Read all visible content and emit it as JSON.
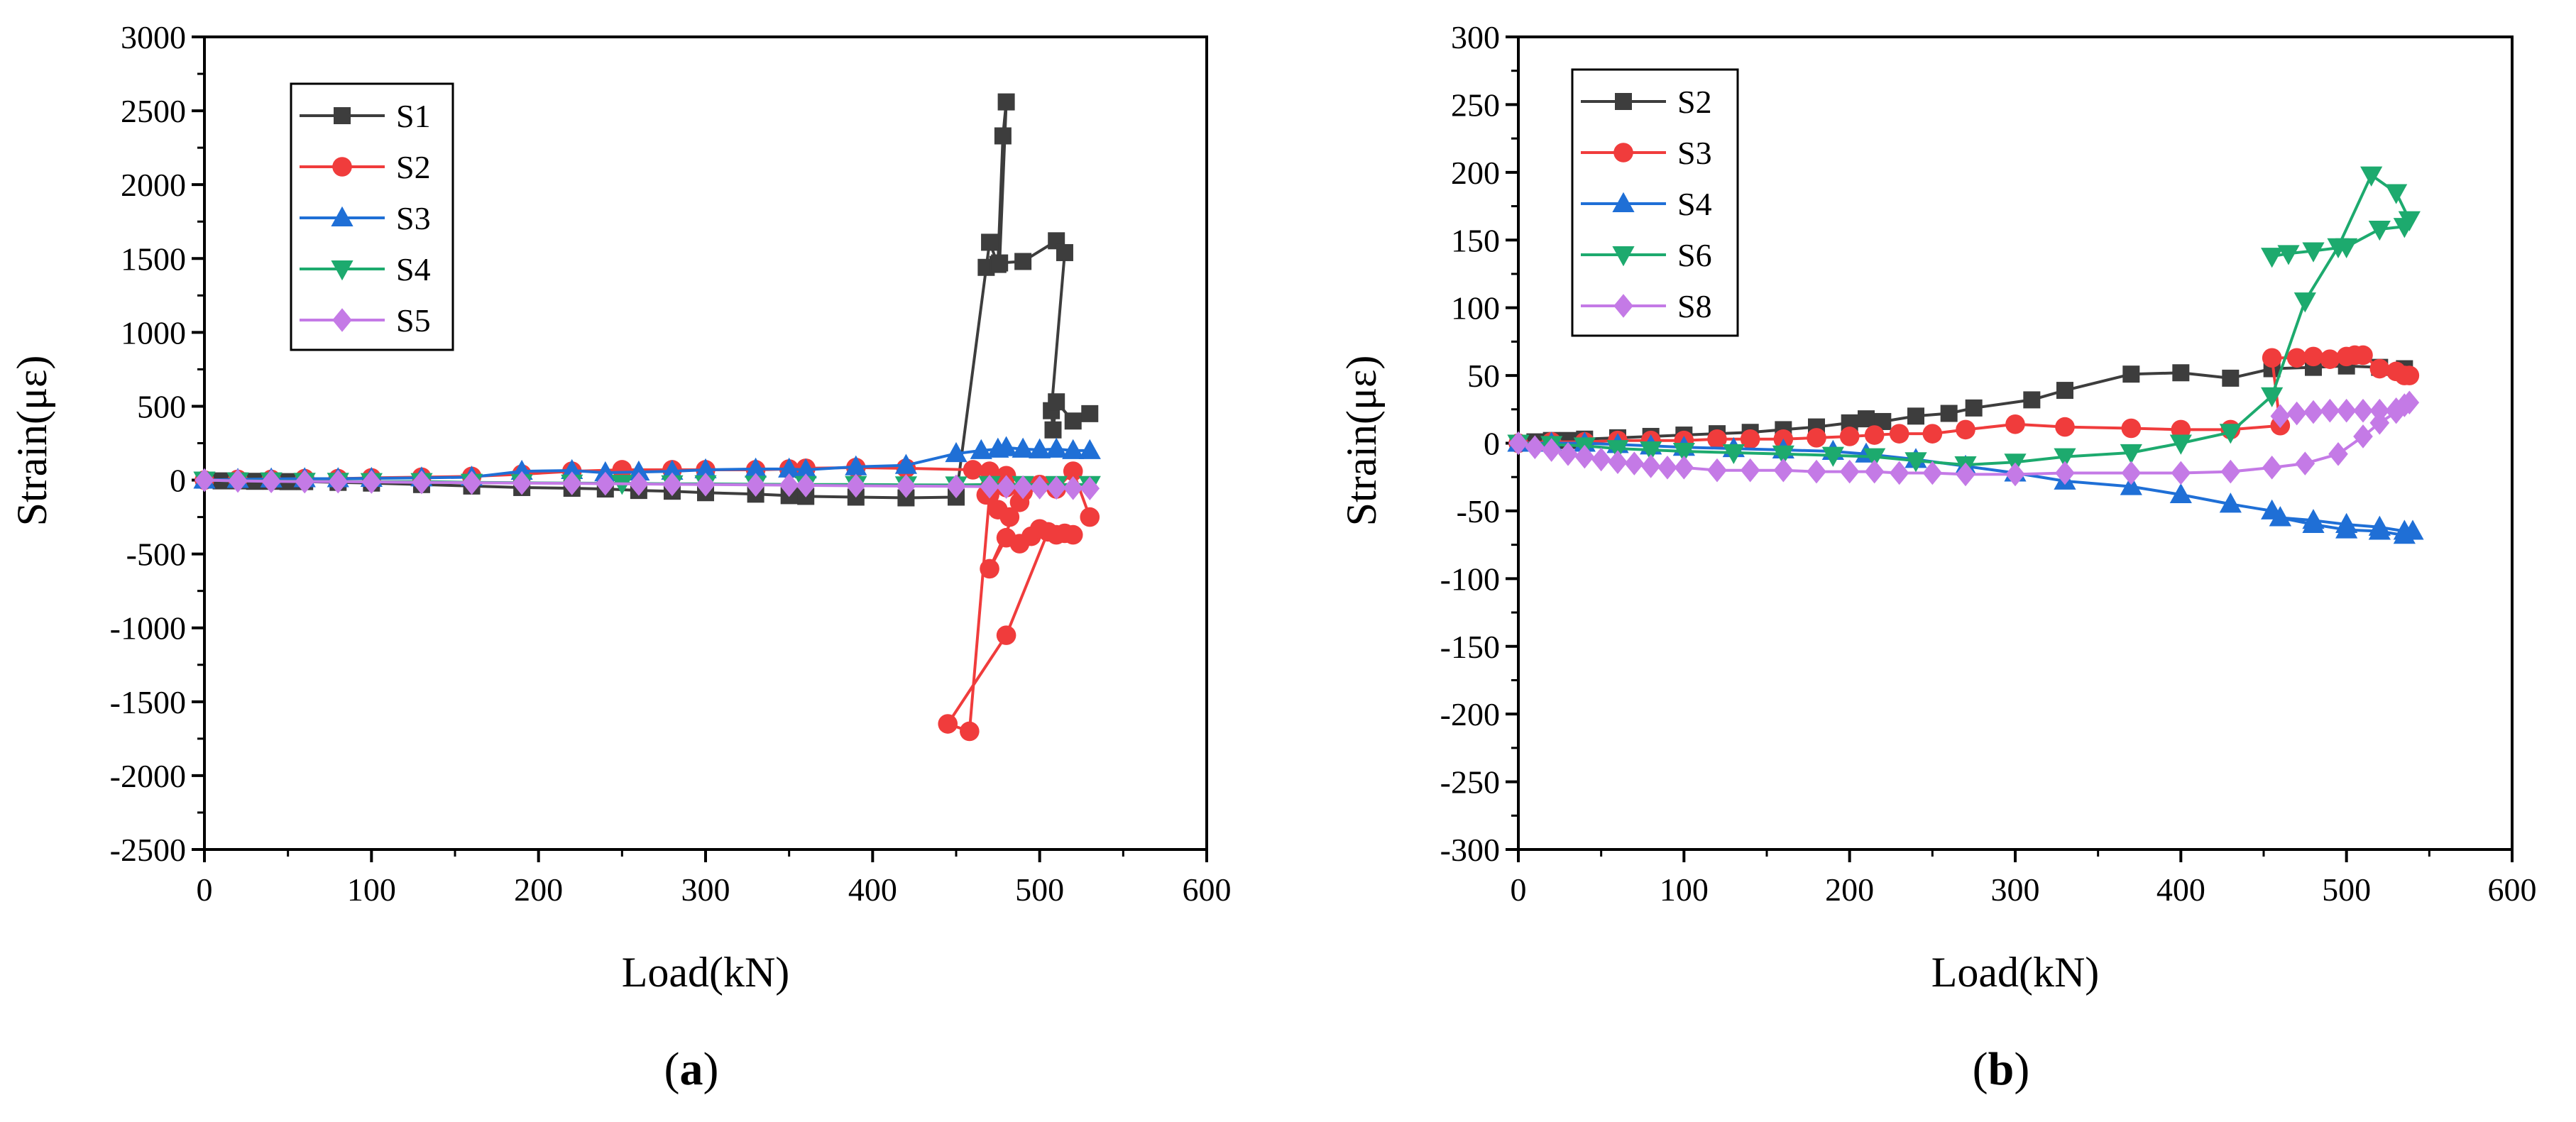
{
  "chart_data": [
    {
      "type": "line",
      "panel_label": "(a)",
      "panel_letter": "a",
      "title": "",
      "xlabel": "Load(kN)",
      "ylabel": "Strain(με)",
      "xlim": [
        0,
        600
      ],
      "ylim": [
        -2500,
        3000
      ],
      "xticks": [
        0,
        100,
        200,
        300,
        400,
        500,
        600
      ],
      "yticks": [
        -2500,
        -2000,
        -1500,
        -1000,
        -500,
        0,
        500,
        1000,
        1500,
        2000,
        2500,
        3000
      ],
      "grid": false,
      "legend_position": "top-left",
      "series": [
        {
          "name": "S1",
          "color": "#3d3d3d",
          "marker": "square",
          "x": [
            0,
            10,
            20,
            30,
            40,
            50,
            60,
            80,
            100,
            130,
            160,
            190,
            220,
            240,
            260,
            280,
            300,
            330,
            350,
            360,
            390,
            420,
            450,
            468,
            470,
            475,
            478,
            480,
            476,
            490,
            510,
            515,
            507,
            508,
            510,
            520,
            530
          ],
          "y": [
            0,
            -5,
            -5,
            -8,
            -8,
            -10,
            -10,
            -15,
            -20,
            -30,
            -40,
            -50,
            -55,
            -60,
            -70,
            -75,
            -85,
            -95,
            -105,
            -110,
            -115,
            -120,
            -115,
            1440,
            1610,
            1460,
            2330,
            2560,
            1470,
            1480,
            1620,
            1540,
            470,
            340,
            530,
            400,
            450
          ]
        },
        {
          "name": "S2",
          "color": "#f03c3c",
          "marker": "circle",
          "x": [
            0,
            20,
            40,
            60,
            80,
            100,
            130,
            160,
            190,
            220,
            250,
            280,
            300,
            330,
            350,
            360,
            390,
            420,
            460,
            470,
            480,
            475,
            470,
            468,
            475,
            482,
            488,
            470,
            480,
            488,
            495,
            500,
            510,
            520,
            515,
            505,
            480,
            445,
            458,
            470,
            480,
            490,
            500,
            510,
            520,
            530
          ],
          "y": [
            0,
            5,
            5,
            10,
            10,
            15,
            20,
            25,
            40,
            60,
            70,
            70,
            70,
            70,
            75,
            80,
            85,
            80,
            70,
            60,
            30,
            -10,
            -50,
            -100,
            -200,
            -250,
            -150,
            -600,
            -390,
            -430,
            -380,
            -330,
            -370,
            -370,
            -360,
            -350,
            -1050,
            -1650,
            -1700,
            -100,
            -50,
            -80,
            -30,
            -60,
            60,
            -250
          ]
        },
        {
          "name": "S3",
          "color": "#1f6fd6",
          "marker": "triangle-up",
          "x": [
            0,
            20,
            40,
            60,
            80,
            100,
            130,
            160,
            190,
            220,
            240,
            260,
            280,
            300,
            330,
            350,
            360,
            390,
            420,
            450,
            465,
            475,
            480,
            490,
            500,
            510,
            520,
            530
          ],
          "y": [
            0,
            5,
            8,
            10,
            10,
            12,
            15,
            20,
            60,
            65,
            50,
            55,
            60,
            70,
            75,
            75,
            70,
            90,
            100,
            180,
            200,
            210,
            220,
            210,
            205,
            210,
            200,
            200
          ]
        },
        {
          "name": "S4",
          "color": "#1daa6e",
          "marker": "triangle-down",
          "x": [
            0,
            20,
            40,
            60,
            80,
            100,
            130,
            160,
            190,
            220,
            250,
            280,
            300,
            330,
            360,
            390,
            420,
            450,
            470,
            490,
            510,
            530
          ],
          "y": [
            0,
            -5,
            -5,
            -8,
            -8,
            -10,
            -10,
            -15,
            -18,
            -20,
            -22,
            -25,
            -25,
            -28,
            -30,
            -30,
            -32,
            -33,
            -30,
            -30,
            -30,
            -30
          ]
        },
        {
          "name": "S5",
          "color": "#c47ae6",
          "marker": "diamond",
          "x": [
            0,
            20,
            40,
            60,
            80,
            100,
            130,
            160,
            190,
            220,
            240,
            260,
            280,
            300,
            330,
            350,
            360,
            390,
            420,
            450,
            470,
            480,
            490,
            500,
            510,
            520,
            530
          ],
          "y": [
            0,
            -5,
            -8,
            -10,
            -10,
            -12,
            -15,
            -18,
            -20,
            -22,
            -24,
            -26,
            -28,
            -30,
            -32,
            -34,
            -36,
            -38,
            -40,
            -42,
            -44,
            -46,
            -48,
            -50,
            -52,
            -54,
            -56
          ]
        }
      ]
    },
    {
      "type": "line",
      "panel_label": "(b)",
      "panel_letter": "b",
      "title": "",
      "xlabel": "Load(kN)",
      "ylabel": "Strain(με)",
      "xlim": [
        0,
        600
      ],
      "ylim": [
        -300,
        300
      ],
      "xticks": [
        0,
        100,
        200,
        300,
        400,
        500,
        600
      ],
      "yticks": [
        -300,
        -250,
        -200,
        -150,
        -100,
        -50,
        0,
        50,
        100,
        150,
        200,
        250,
        300
      ],
      "grid": false,
      "legend_position": "top-left",
      "series": [
        {
          "name": "S2",
          "color": "#3d3d3d",
          "marker": "square",
          "x": [
            0,
            10,
            20,
            30,
            40,
            60,
            80,
            100,
            120,
            140,
            160,
            180,
            200,
            210,
            220,
            240,
            260,
            275,
            310,
            330,
            370,
            400,
            430,
            455,
            480,
            500,
            520,
            535
          ],
          "y": [
            0,
            1,
            2,
            2,
            3,
            4,
            5,
            6,
            7,
            8,
            10,
            12,
            15,
            18,
            16,
            20,
            22,
            26,
            32,
            39,
            51,
            52,
            48,
            55,
            56,
            57,
            56,
            55
          ]
        },
        {
          "name": "S3",
          "color": "#f03c3c",
          "marker": "circle",
          "x": [
            0,
            20,
            40,
            60,
            80,
            100,
            120,
            140,
            160,
            180,
            200,
            215,
            230,
            250,
            270,
            300,
            330,
            370,
            400,
            430,
            460,
            455,
            470,
            480,
            490,
            500,
            505,
            510,
            520,
            530,
            535,
            538
          ],
          "y": [
            0,
            1,
            1,
            2,
            2,
            2,
            3,
            3,
            3,
            4,
            5,
            6,
            7,
            7,
            10,
            14,
            12,
            11,
            10,
            10,
            13,
            63,
            63,
            64,
            62,
            64,
            65,
            65,
            55,
            53,
            50,
            50
          ]
        },
        {
          "name": "S4",
          "color": "#1f6fd6",
          "marker": "triangle-up",
          "x": [
            0,
            20,
            40,
            60,
            80,
            100,
            130,
            160,
            190,
            210,
            240,
            270,
            300,
            330,
            370,
            400,
            430,
            455,
            460,
            480,
            500,
            520,
            535,
            540,
            535,
            520,
            500,
            480,
            460
          ],
          "y": [
            0,
            0,
            0,
            -1,
            -2,
            -3,
            -4,
            -5,
            -6,
            -8,
            -12,
            -17,
            -22,
            -28,
            -32,
            -38,
            -45,
            -50,
            -55,
            -57,
            -60,
            -62,
            -65,
            -65,
            -68,
            -65,
            -64,
            -60,
            -55
          ]
        },
        {
          "name": "S6",
          "color": "#1daa6e",
          "marker": "triangle-down",
          "x": [
            0,
            20,
            40,
            60,
            80,
            100,
            130,
            160,
            190,
            215,
            240,
            270,
            300,
            330,
            370,
            400,
            430,
            455,
            475,
            495,
            515,
            530,
            538,
            535,
            520,
            500,
            480,
            465,
            455
          ],
          "y": [
            0,
            -1,
            -2,
            -4,
            -5,
            -6,
            -7,
            -8,
            -9,
            -10,
            -13,
            -16,
            -14,
            -10,
            -7,
            0,
            8,
            35,
            105,
            145,
            198,
            185,
            165,
            160,
            158,
            145,
            142,
            140,
            138
          ]
        },
        {
          "name": "S8",
          "color": "#c47ae6",
          "marker": "diamond",
          "x": [
            0,
            10,
            20,
            30,
            40,
            50,
            60,
            70,
            80,
            90,
            100,
            120,
            140,
            160,
            180,
            200,
            215,
            230,
            250,
            270,
            300,
            330,
            370,
            400,
            430,
            455,
            475,
            495,
            510,
            520,
            530,
            538,
            535,
            530,
            520,
            510,
            500,
            490,
            480,
            470,
            460
          ],
          "y": [
            0,
            -3,
            -5,
            -8,
            -10,
            -12,
            -14,
            -15,
            -17,
            -18,
            -18,
            -20,
            -20,
            -20,
            -21,
            -21,
            -21,
            -22,
            -22,
            -23,
            -23,
            -22,
            -22,
            -22,
            -21,
            -18,
            -15,
            -8,
            5,
            15,
            23,
            30,
            28,
            25,
            24,
            24,
            24,
            24,
            23,
            22,
            20
          ]
        }
      ]
    }
  ]
}
